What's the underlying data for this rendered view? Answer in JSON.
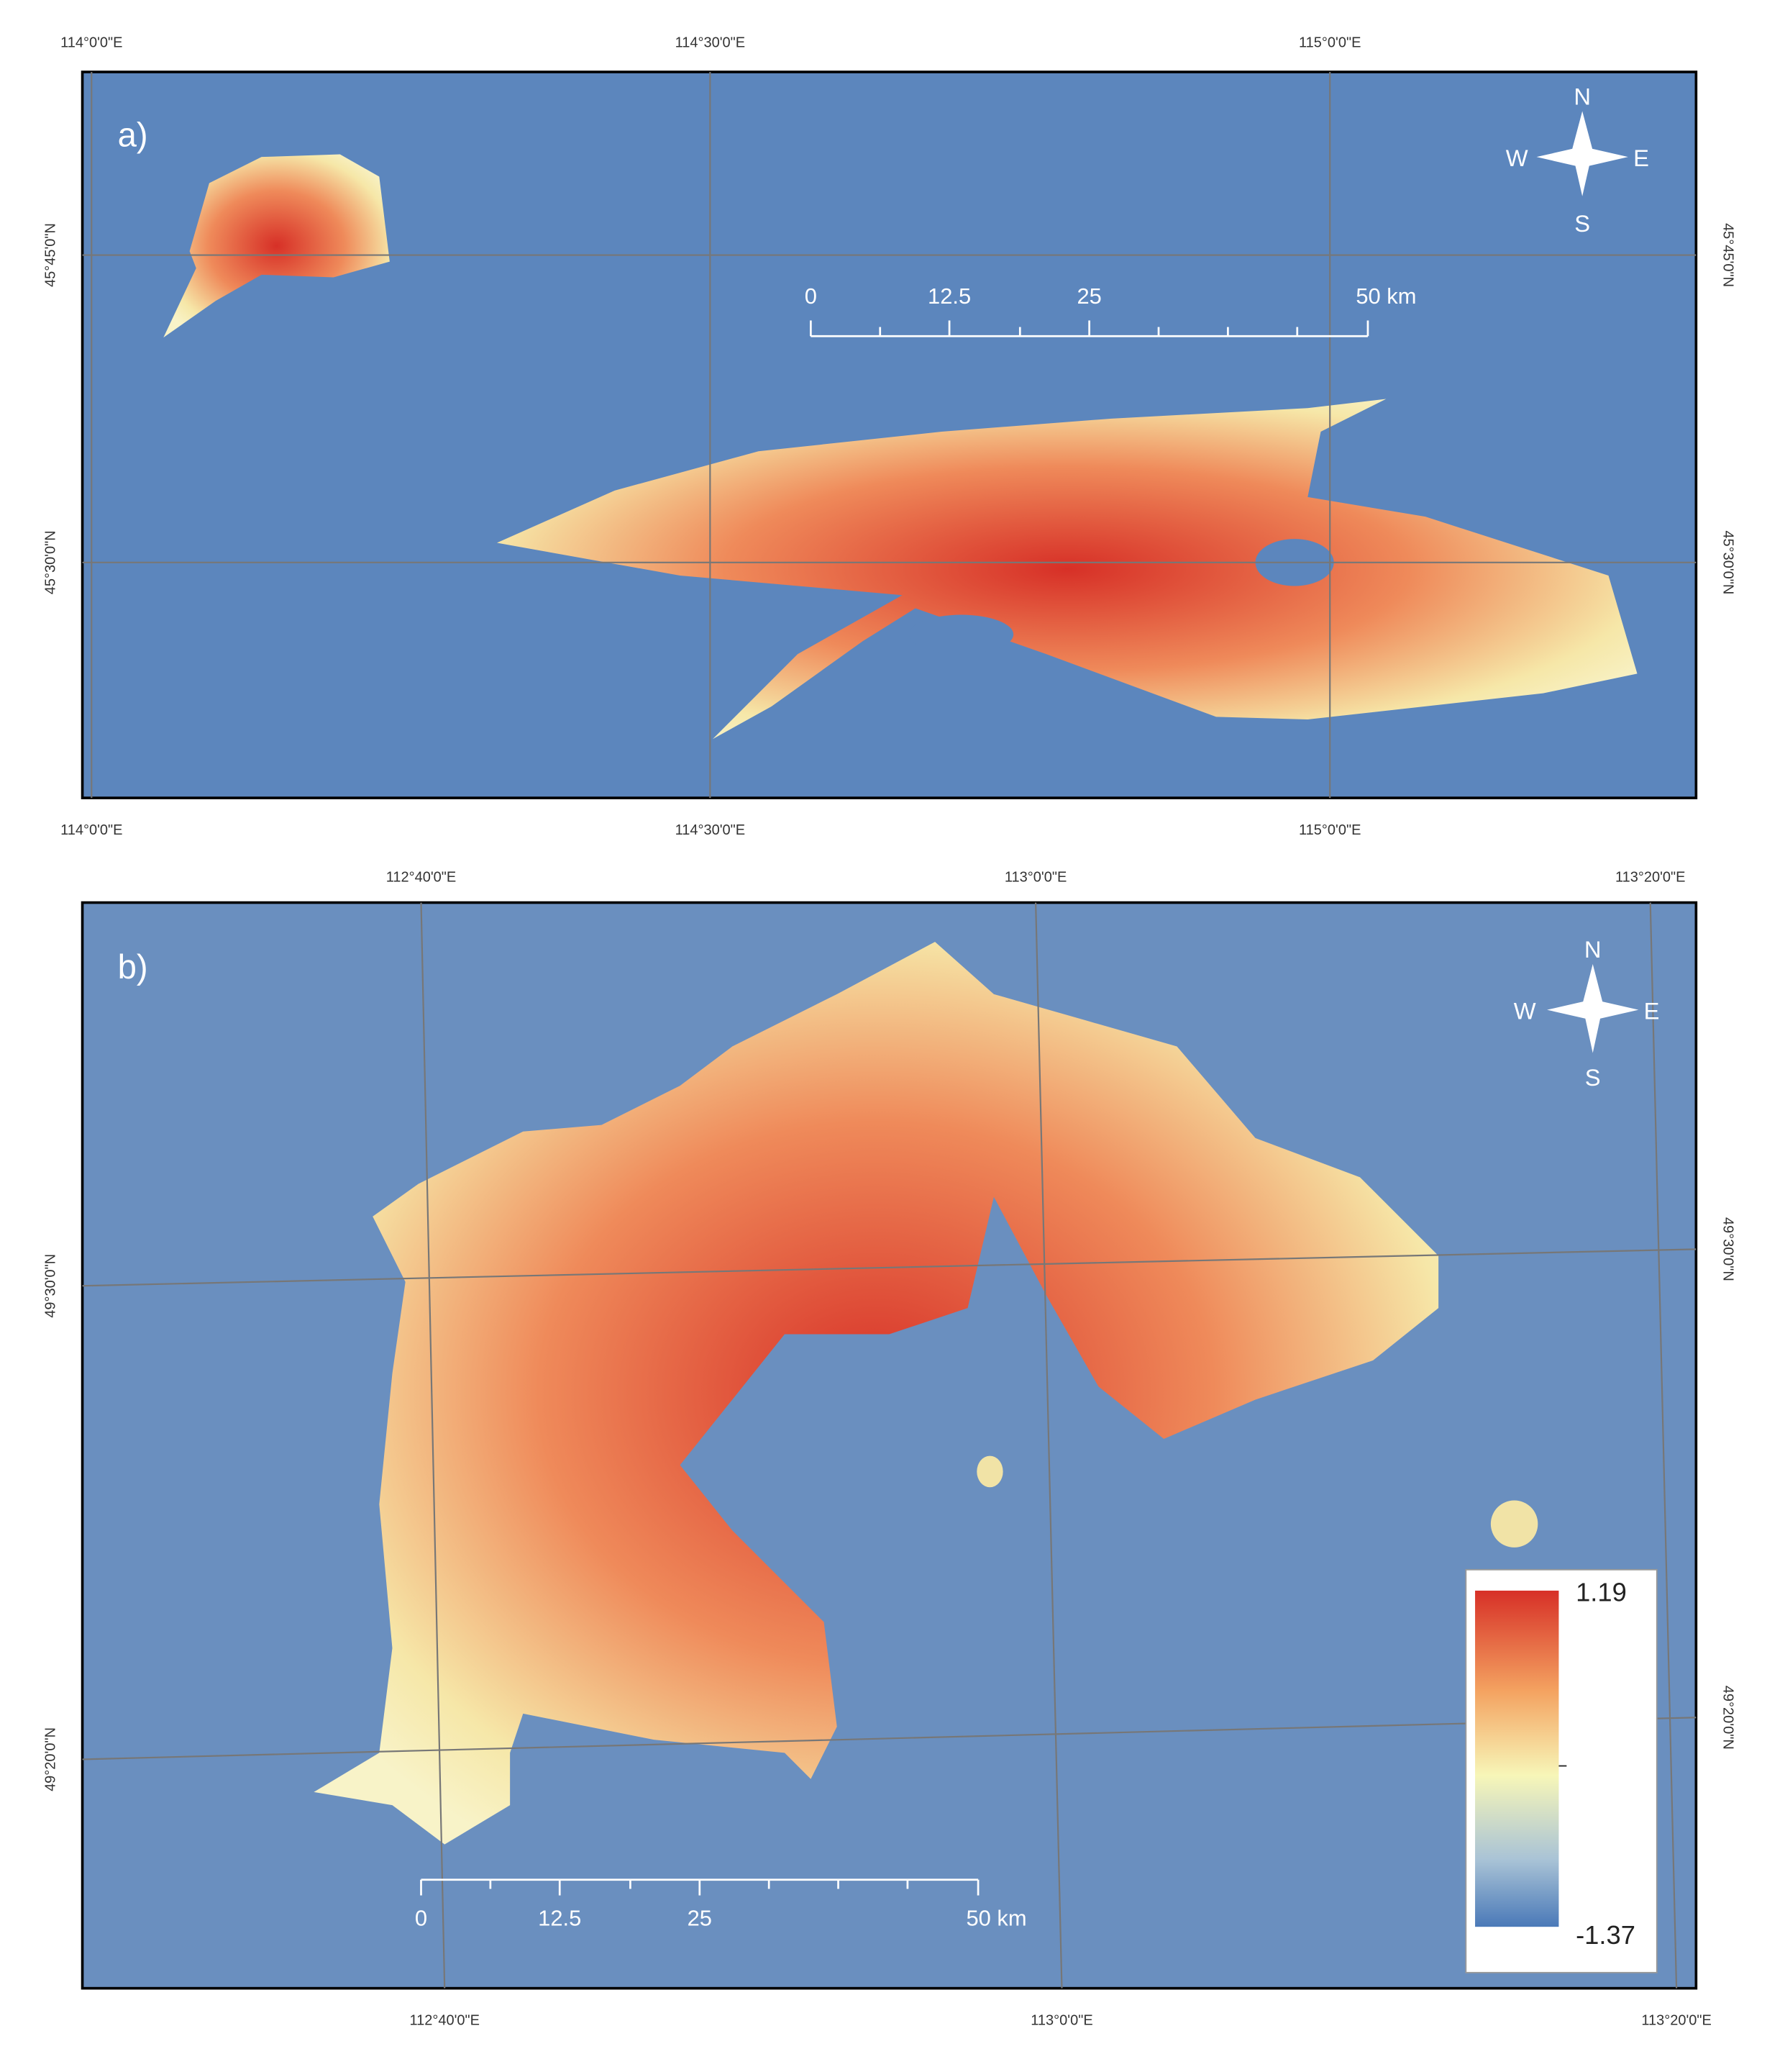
{
  "panels": [
    {
      "label": "a)",
      "top_ticks": [
        "114°0'0\"E",
        "114°30'0\"E",
        "115°0'0\"E"
      ],
      "bottom_ticks": [
        "114°0'0\"E",
        "114°30'0\"E",
        "115°0'0\"E"
      ],
      "left_ticks": [
        "45°45'0\"N",
        "45°30'0\"N"
      ],
      "right_ticks": [
        "45°45'0\"N",
        "45°30'0\"N"
      ],
      "compass": {
        "n": "N",
        "e": "E",
        "s": "S",
        "w": "W"
      },
      "scale_bar": [
        "0",
        "12.5",
        "25",
        "50 km"
      ]
    },
    {
      "label": "b)",
      "top_ticks": [
        "112°40'0\"E",
        "113°0'0\"E",
        "113°20'0\"E"
      ],
      "bottom_ticks": [
        "112°40'0\"E",
        "113°0'0\"E",
        "113°20'0\"E"
      ],
      "left_ticks": [
        "49°30'0\"N",
        "49°20'0\"N"
      ],
      "right_ticks": [
        "49°30'0\"N",
        "49°20'0\"N"
      ],
      "compass": {
        "n": "N",
        "e": "E",
        "s": "S",
        "w": "W"
      },
      "scale_bar": [
        "0",
        "12.5",
        "25",
        "50 km"
      ]
    }
  ],
  "legend": {
    "max": 1.19,
    "min": -1.37
  }
}
